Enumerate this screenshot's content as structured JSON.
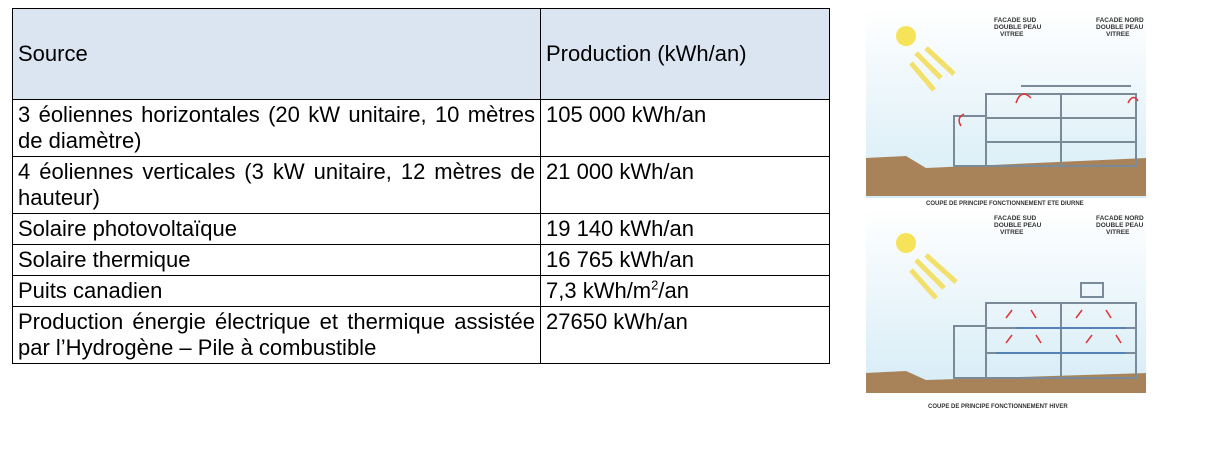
{
  "table": {
    "header": [
      "Source",
      "Production (kWh/an)"
    ],
    "rows": [
      [
        "3 éoliennes horizontales (20 kW unitaire, 10 mètres de diamètre)",
        "105 000 kWh/an"
      ],
      [
        "4 éoliennes verticales (3 kW unitaire, 12 mètres de hauteur)",
        "21 000 kWh/an"
      ],
      [
        "Solaire photovoltaïque",
        "19 140 kWh/an"
      ],
      [
        "Solaire thermique",
        "16 765 kWh/an"
      ],
      [
        "Puits canadien",
        [
          "7,3 kWh/m",
          "2",
          "/an"
        ]
      ],
      [
        "Production énergie électrique et thermique assistée par l’Hydrogène – Pile à combustible",
        "27650 kWh/an"
      ]
    ]
  },
  "figures": [
    {
      "south": [
        "FACADE SUD",
        "DOUBLE PEAU",
        "VITREE"
      ],
      "north": [
        "FACADE NORD",
        "DOUBLE PEAU",
        "VITREE"
      ],
      "caption": "COUPE DE PRINCIPE FONCTIONNEMENT ETE DIURNE"
    },
    {
      "south": [
        "FACADE SUD",
        "DOUBLE PEAU",
        "VITREE"
      ],
      "north": [
        "FACADE NORD",
        "DOUBLE PEAU",
        "VITREE"
      ],
      "caption": "COUPE DE PRINCIPE FONCTIONNEMENT HIVER"
    }
  ]
}
